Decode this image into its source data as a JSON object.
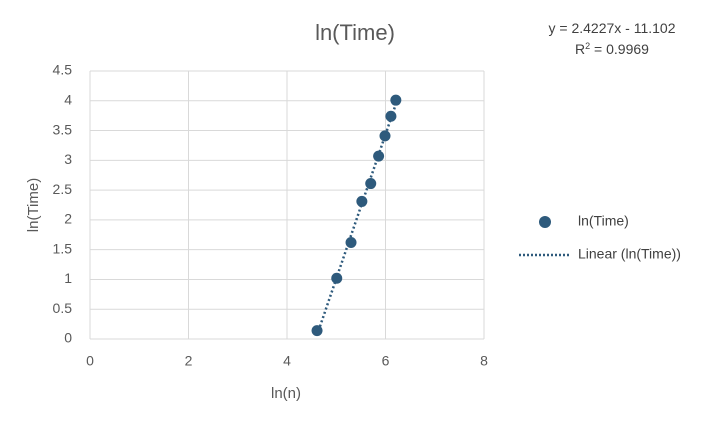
{
  "chart_data": {
    "type": "scatter",
    "title": "ln(Time)",
    "xlabel": "ln(n)",
    "ylabel": "ln(Time)",
    "xlim": [
      0,
      8
    ],
    "ylim": [
      0,
      4.5
    ],
    "xticks": [
      0,
      2,
      4,
      6,
      8
    ],
    "yticks": [
      0,
      0.5,
      1,
      1.5,
      2,
      2.5,
      3,
      3.5,
      4,
      4.5
    ],
    "grid": true,
    "legend_position": "right",
    "series": [
      {
        "name": "ln(Time)",
        "color": "#2e5a7c",
        "x": [
          4.61,
          5.01,
          5.3,
          5.52,
          5.7,
          5.86,
          5.99,
          6.11,
          6.21
        ],
        "y": [
          0.14,
          1.02,
          1.62,
          2.31,
          2.61,
          3.07,
          3.41,
          3.74,
          4.01
        ]
      }
    ],
    "trendline": {
      "name": "Linear (ln(Time))",
      "type": "linear",
      "slope": 2.4227,
      "intercept": -11.102,
      "style": "dotted",
      "color": "#2e5a7c",
      "equation_text": "y = 2.4227x - 11.102",
      "r2_label": "R",
      "r2_sup": "2",
      "r2_value": " = 0.9969"
    }
  }
}
